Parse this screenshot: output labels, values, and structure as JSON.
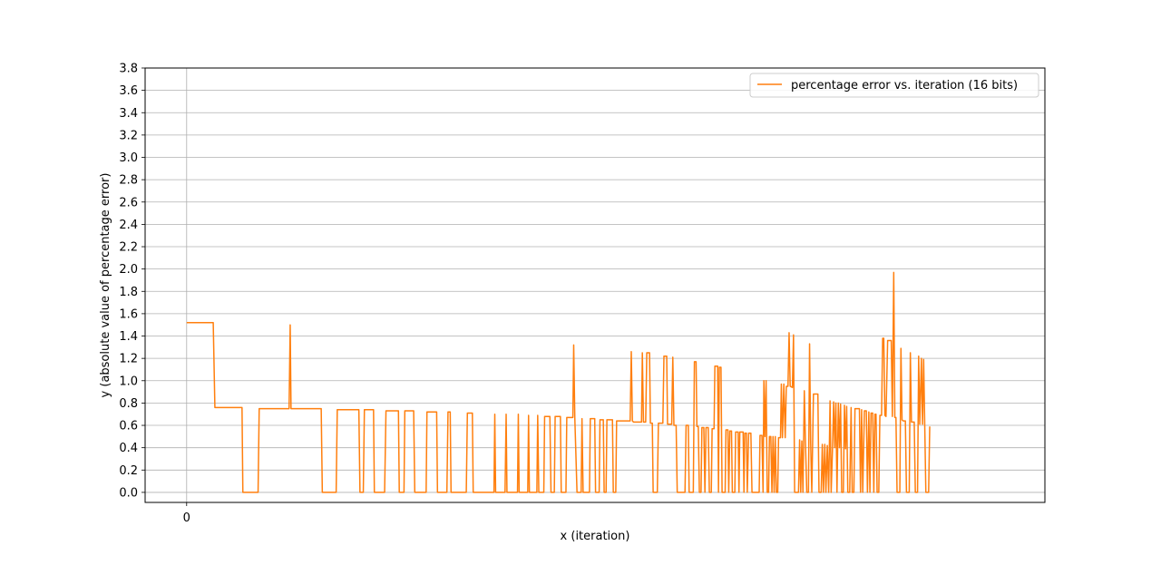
{
  "chart_data": {
    "type": "line",
    "title": "",
    "xlabel": "x (iteration)",
    "ylabel": "y (absolute value of percentage error)",
    "xlim": [
      -150,
      3100
    ],
    "ylim": [
      -0.09,
      3.8
    ],
    "x_ticks": [
      0
    ],
    "x_tick_labels": [
      "0"
    ],
    "y_ticks": [
      0.0,
      0.2,
      0.4,
      0.6,
      0.8,
      1.0,
      1.2,
      1.4,
      1.6,
      1.8,
      2.0,
      2.2,
      2.4,
      2.6,
      2.8,
      3.0,
      3.2,
      3.4,
      3.6,
      3.8
    ],
    "y_tick_labels": [
      "0.0",
      "0.2",
      "0.4",
      "0.6",
      "0.8",
      "1.0",
      "1.2",
      "1.4",
      "1.6",
      "1.8",
      "2.0",
      "2.2",
      "2.4",
      "2.6",
      "2.8",
      "3.0",
      "3.2",
      "3.4",
      "3.6",
      "3.8"
    ],
    "grid": true,
    "legend_position": "top-right",
    "series": [
      {
        "name": "percentage error vs. iteration (16 bits)",
        "color": "#ff7f0e",
        "points": [
          [
            0,
            1.52
          ],
          [
            96,
            1.52
          ],
          [
            102,
            0.76
          ],
          [
            200,
            0.76
          ],
          [
            203,
            0.0
          ],
          [
            258,
            0.0
          ],
          [
            262,
            0.75
          ],
          [
            370,
            0.75
          ],
          [
            374,
            1.5
          ],
          [
            377,
            0.75
          ],
          [
            486,
            0.75
          ],
          [
            490,
            0.0
          ],
          [
            540,
            0.0
          ],
          [
            544,
            0.74
          ],
          [
            622,
            0.74
          ],
          [
            626,
            0.0
          ],
          [
            638,
            0.0
          ],
          [
            642,
            0.74
          ],
          [
            675,
            0.74
          ],
          [
            678,
            0.0
          ],
          [
            715,
            0.0
          ],
          [
            720,
            0.73
          ],
          [
            765,
            0.73
          ],
          [
            768,
            0.0
          ],
          [
            785,
            0.0
          ],
          [
            788,
            0.73
          ],
          [
            820,
            0.73
          ],
          [
            824,
            0.0
          ],
          [
            865,
            0.0
          ],
          [
            868,
            0.72
          ],
          [
            903,
            0.72
          ],
          [
            906,
            0.0
          ],
          [
            940,
            0.0
          ],
          [
            944,
            0.72
          ],
          [
            952,
            0.72
          ],
          [
            955,
            0.0
          ],
          [
            1010,
            0.0
          ],
          [
            1014,
            0.71
          ],
          [
            1032,
            0.71
          ],
          [
            1035,
            0.0
          ],
          [
            1110,
            0.0
          ],
          [
            1113,
            0.7
          ],
          [
            1116,
            0.0
          ],
          [
            1150,
            0.0
          ],
          [
            1154,
            0.7
          ],
          [
            1157,
            0.0
          ],
          [
            1195,
            0.0
          ],
          [
            1198,
            0.7
          ],
          [
            1201,
            0.0
          ],
          [
            1232,
            0.0
          ],
          [
            1235,
            0.69
          ],
          [
            1238,
            0.0
          ],
          [
            1265,
            0.0
          ],
          [
            1268,
            0.69
          ],
          [
            1272,
            0.0
          ],
          [
            1290,
            0.0
          ],
          [
            1293,
            0.68
          ],
          [
            1312,
            0.68
          ],
          [
            1316,
            0.0
          ],
          [
            1328,
            0.0
          ],
          [
            1331,
            0.68
          ],
          [
            1350,
            0.68
          ],
          [
            1353,
            0.0
          ],
          [
            1370,
            0.0
          ],
          [
            1373,
            0.67
          ],
          [
            1395,
            0.67
          ],
          [
            1398,
            1.32
          ],
          [
            1402,
            0.67
          ],
          [
            1410,
            0.0
          ],
          [
            1425,
            0.0
          ],
          [
            1428,
            0.66
          ],
          [
            1432,
            0.0
          ],
          [
            1455,
            0.0
          ],
          [
            1458,
            0.66
          ],
          [
            1474,
            0.66
          ],
          [
            1477,
            0.0
          ],
          [
            1490,
            0.0
          ],
          [
            1493,
            0.65
          ],
          [
            1505,
            0.65
          ],
          [
            1508,
            0.0
          ],
          [
            1515,
            0.0
          ],
          [
            1518,
            0.65
          ],
          [
            1538,
            0.65
          ],
          [
            1541,
            0.0
          ],
          [
            1550,
            0.0
          ],
          [
            1553,
            0.64
          ],
          [
            1602,
            0.64
          ],
          [
            1606,
            1.26
          ],
          [
            1610,
            0.64
          ],
          [
            1614,
            0.63
          ],
          [
            1643,
            0.63
          ],
          [
            1646,
            1.25
          ],
          [
            1650,
            0.63
          ],
          [
            1658,
            0.63
          ],
          [
            1662,
            1.25
          ],
          [
            1672,
            1.25
          ],
          [
            1675,
            0.62
          ],
          [
            1682,
            0.62
          ],
          [
            1685,
            0.0
          ],
          [
            1700,
            0.0
          ],
          [
            1704,
            0.62
          ],
          [
            1720,
            0.62
          ],
          [
            1724,
            1.22
          ],
          [
            1734,
            1.22
          ],
          [
            1737,
            0.61
          ],
          [
            1752,
            0.61
          ],
          [
            1756,
            1.21
          ],
          [
            1760,
            0.6
          ],
          [
            1768,
            0.6
          ],
          [
            1772,
            0.0
          ],
          [
            1800,
            0.0
          ],
          [
            1804,
            0.6
          ],
          [
            1812,
            0.6
          ],
          [
            1815,
            0.0
          ],
          [
            1830,
            0.0
          ],
          [
            1834,
            1.17
          ],
          [
            1840,
            1.17
          ],
          [
            1843,
            0.59
          ],
          [
            1848,
            0.59
          ],
          [
            1852,
            0.0
          ],
          [
            1858,
            0.0
          ],
          [
            1861,
            0.58
          ],
          [
            1868,
            0.58
          ],
          [
            1872,
            0.0
          ],
          [
            1876,
            0.58
          ],
          [
            1884,
            0.58
          ],
          [
            1888,
            0.0
          ],
          [
            1895,
            0.0
          ],
          [
            1898,
            0.57
          ],
          [
            1905,
            0.57
          ],
          [
            1908,
            1.13
          ],
          [
            1918,
            1.13
          ],
          [
            1921,
            0.0
          ],
          [
            1924,
            1.12
          ],
          [
            1930,
            1.12
          ],
          [
            1934,
            0.0
          ],
          [
            1945,
            0.0
          ],
          [
            1948,
            0.56
          ],
          [
            1955,
            0.56
          ],
          [
            1958,
            0.0
          ],
          [
            1962,
            0.55
          ],
          [
            1968,
            0.55
          ],
          [
            1971,
            0.0
          ],
          [
            1980,
            0.0
          ],
          [
            1983,
            0.54
          ],
          [
            1992,
            0.54
          ],
          [
            1995,
            0.0
          ],
          [
            1998,
            0.54
          ],
          [
            2010,
            0.54
          ],
          [
            2013,
            0.0
          ],
          [
            2016,
            0.53
          ],
          [
            2022,
            0.53
          ],
          [
            2025,
            0.0
          ],
          [
            2030,
            0.53
          ],
          [
            2038,
            0.53
          ],
          [
            2042,
            0.0
          ],
          [
            2068,
            0.0
          ],
          [
            2071,
            0.51
          ],
          [
            2078,
            0.51
          ],
          [
            2082,
            0.0
          ],
          [
            2085,
            1.0
          ],
          [
            2089,
            0.5
          ],
          [
            2093,
            1.0
          ],
          [
            2097,
            0.0
          ],
          [
            2102,
            0.0
          ],
          [
            2105,
            0.5
          ],
          [
            2110,
            0.5
          ],
          [
            2114,
            0.0
          ],
          [
            2118,
            0.5
          ],
          [
            2122,
            0.0
          ],
          [
            2126,
            0.5
          ],
          [
            2130,
            0.0
          ],
          [
            2135,
            0.0
          ],
          [
            2138,
            0.49
          ],
          [
            2145,
            0.49
          ],
          [
            2148,
            0.97
          ],
          [
            2152,
            0.49
          ],
          [
            2157,
            0.97
          ],
          [
            2162,
            0.49
          ],
          [
            2166,
            0.95
          ],
          [
            2172,
            0.95
          ],
          [
            2176,
            1.43
          ],
          [
            2180,
            0.95
          ],
          [
            2188,
            0.94
          ],
          [
            2192,
            1.41
          ],
          [
            2196,
            0.0
          ],
          [
            2210,
            0.0
          ],
          [
            2214,
            0.47
          ],
          [
            2218,
            0.0
          ],
          [
            2222,
            0.46
          ],
          [
            2226,
            0.0
          ],
          [
            2231,
            0.91
          ],
          [
            2235,
            0.45
          ],
          [
            2240,
            0.0
          ],
          [
            2246,
            0.0
          ],
          [
            2250,
            1.33
          ],
          [
            2254,
            0.44
          ],
          [
            2258,
            0.0
          ],
          [
            2264,
            0.88
          ],
          [
            2280,
            0.88
          ],
          [
            2284,
            0.0
          ],
          [
            2292,
            0.0
          ],
          [
            2296,
            0.43
          ],
          [
            2300,
            0.0
          ],
          [
            2305,
            0.43
          ],
          [
            2309,
            0.0
          ],
          [
            2314,
            0.42
          ],
          [
            2319,
            0.0
          ],
          [
            2324,
            0.82
          ],
          [
            2328,
            0.0
          ],
          [
            2333,
            0.41
          ],
          [
            2337,
            0.81
          ],
          [
            2341,
            0.4
          ],
          [
            2345,
            0.8
          ],
          [
            2349,
            0.0
          ],
          [
            2354,
            0.8
          ],
          [
            2358,
            0.4
          ],
          [
            2362,
            0.79
          ],
          [
            2366,
            0.0
          ],
          [
            2372,
            0.0
          ],
          [
            2376,
            0.78
          ],
          [
            2380,
            0.39
          ],
          [
            2384,
            0.77
          ],
          [
            2388,
            0.0
          ],
          [
            2395,
            0.0
          ],
          [
            2400,
            0.76
          ],
          [
            2404,
            0.0
          ],
          [
            2410,
            0.0
          ],
          [
            2414,
            0.75
          ],
          [
            2430,
            0.75
          ],
          [
            2434,
            0.0
          ],
          [
            2438,
            0.74
          ],
          [
            2442,
            0.0
          ],
          [
            2448,
            0.73
          ],
          [
            2455,
            0.73
          ],
          [
            2459,
            0.0
          ],
          [
            2464,
            0.72
          ],
          [
            2468,
            0.0
          ],
          [
            2472,
            0.71
          ],
          [
            2478,
            0.71
          ],
          [
            2482,
            0.0
          ],
          [
            2486,
            0.7
          ],
          [
            2490,
            0.7
          ],
          [
            2494,
            0.0
          ],
          [
            2500,
            0.0
          ],
          [
            2504,
            0.69
          ],
          [
            2510,
            0.69
          ],
          [
            2514,
            1.38
          ],
          [
            2518,
            1.38
          ],
          [
            2522,
            0.69
          ],
          [
            2526,
            0.68
          ],
          [
            2532,
            1.36
          ],
          [
            2545,
            1.36
          ],
          [
            2549,
            0.68
          ],
          [
            2554,
            1.97
          ],
          [
            2558,
            0.67
          ],
          [
            2562,
            0.67
          ],
          [
            2566,
            0.0
          ],
          [
            2576,
            0.0
          ],
          [
            2580,
            1.29
          ],
          [
            2584,
            0.65
          ],
          [
            2588,
            0.64
          ],
          [
            2596,
            0.64
          ],
          [
            2600,
            0.0
          ],
          [
            2610,
            0.0
          ],
          [
            2614,
            1.25
          ],
          [
            2618,
            0.63
          ],
          [
            2628,
            0.63
          ],
          [
            2632,
            0.0
          ],
          [
            2640,
            0.0
          ],
          [
            2644,
            1.22
          ],
          [
            2648,
            0.61
          ],
          [
            2654,
            1.2
          ],
          [
            2658,
            0.61
          ],
          [
            2662,
            1.19
          ],
          [
            2666,
            0.6
          ],
          [
            2670,
            0.0
          ],
          [
            2680,
            0.0
          ],
          [
            2684,
            0.59
          ]
        ]
      }
    ]
  }
}
